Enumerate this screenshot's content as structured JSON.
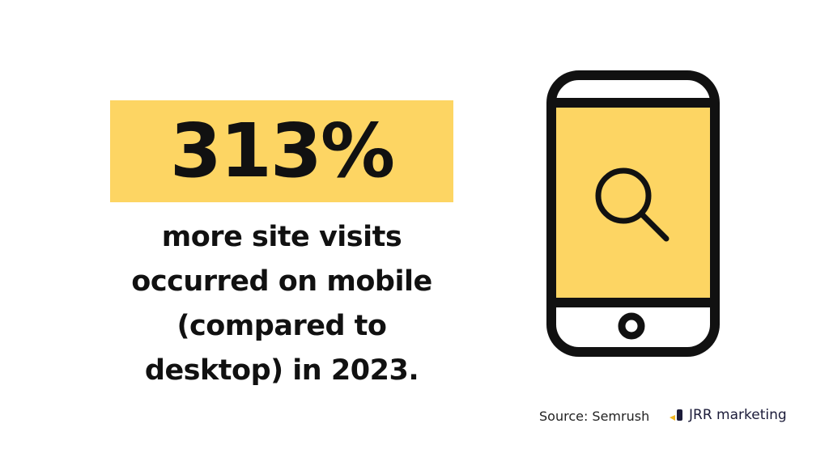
{
  "stat": {
    "value": "313%",
    "highlight_color": "#fdd563"
  },
  "description": {
    "lines": [
      "more site visits",
      "occurred on mobile",
      "(compared to",
      "desktop) in 2023."
    ]
  },
  "illustration": {
    "icon": "smartphone-with-search-icon",
    "screen_color": "#fdd563"
  },
  "footer": {
    "source": "Source: Semrush",
    "logo_text": "JRR marketing"
  }
}
